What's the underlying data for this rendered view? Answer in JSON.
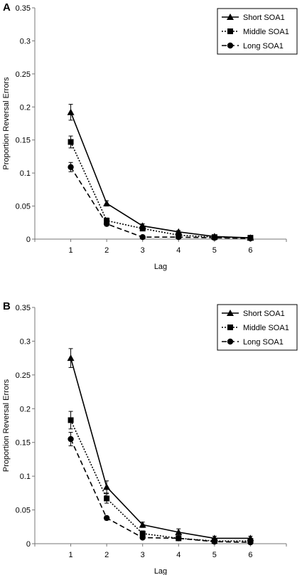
{
  "chart_data": [
    {
      "panel_label": "A",
      "type": "line",
      "xlabel": "Lag",
      "ylabel": "Proportion Reversal Errors",
      "x": [
        1,
        2,
        3,
        4,
        5,
        6
      ],
      "xlim": [
        0,
        7
      ],
      "ylim": [
        0,
        0.35
      ],
      "yticks": [
        "0",
        "0.05",
        "0.1",
        "0.15",
        "0.2",
        "0.25",
        "0.3",
        "0.35"
      ],
      "xticks": [
        "1",
        "2",
        "3",
        "4",
        "5",
        "6"
      ],
      "grid": false,
      "legend_position": "top-right",
      "series": [
        {
          "name": "Short SOA1",
          "marker": "triangle",
          "line": "solid",
          "values": [
            0.192,
            0.054,
            0.02,
            0.011,
            0.004,
            0.002
          ],
          "errors": [
            0.012,
            0.004,
            0.003,
            0.002,
            0.001,
            0.001
          ]
        },
        {
          "name": "Middle SOA1",
          "marker": "square",
          "line": "dotted",
          "values": [
            0.147,
            0.028,
            0.016,
            0.006,
            0.003,
            0.002
          ],
          "errors": [
            0.009,
            0.004,
            0.003,
            0.002,
            0.001,
            0.001
          ]
        },
        {
          "name": "Long SOA1",
          "marker": "circle",
          "line": "dashed",
          "values": [
            0.109,
            0.023,
            0.003,
            0.003,
            0.002,
            0.001
          ],
          "errors": [
            0.007,
            0.003,
            0.001,
            0.001,
            0.001,
            0.001
          ]
        }
      ]
    },
    {
      "panel_label": "B",
      "type": "line",
      "xlabel": "Lag",
      "ylabel": "Proportion Reversal Errors",
      "x": [
        1,
        2,
        3,
        4,
        5,
        6
      ],
      "xlim": [
        0,
        7
      ],
      "ylim": [
        0,
        0.35
      ],
      "yticks": [
        "0",
        "0.05",
        "0.1",
        "0.15",
        "0.2",
        "0.25",
        "0.3",
        "0.35"
      ],
      "xticks": [
        "1",
        "2",
        "3",
        "4",
        "5",
        "6"
      ],
      "grid": false,
      "legend_position": "top-right",
      "series": [
        {
          "name": "Short SOA1",
          "marker": "triangle",
          "line": "solid",
          "values": [
            0.275,
            0.084,
            0.028,
            0.017,
            0.008,
            0.008
          ],
          "errors": [
            0.014,
            0.009,
            0.004,
            0.005,
            0.003,
            0.003
          ]
        },
        {
          "name": "Middle SOA1",
          "marker": "square",
          "line": "dotted",
          "values": [
            0.183,
            0.067,
            0.015,
            0.008,
            0.004,
            0.004
          ],
          "errors": [
            0.013,
            0.007,
            0.004,
            0.003,
            0.002,
            0.002
          ]
        },
        {
          "name": "Long SOA1",
          "marker": "circle",
          "line": "dashed",
          "values": [
            0.155,
            0.038,
            0.009,
            0.008,
            0.003,
            0.002
          ],
          "errors": [
            0.01,
            0.003,
            0.002,
            0.002,
            0.001,
            0.001
          ]
        }
      ]
    }
  ]
}
